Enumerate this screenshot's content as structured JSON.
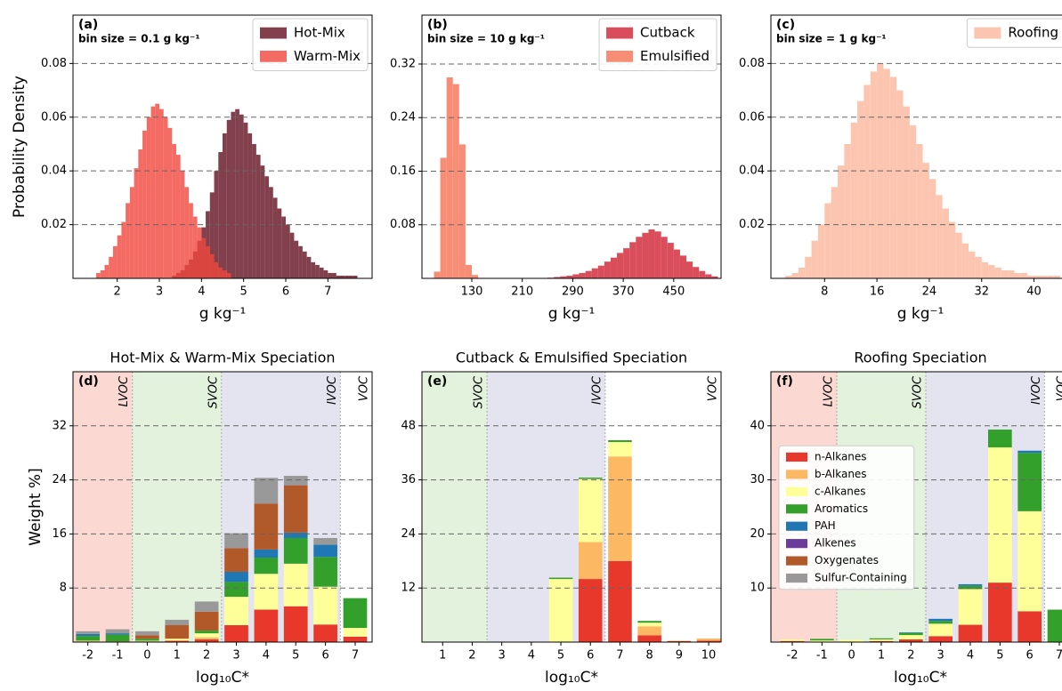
{
  "chart_data": [
    {
      "type": "histogram",
      "panel_label": "(a)",
      "annotation": "bin size = 0.1 g kg⁻¹",
      "xlabel": "g kg⁻¹",
      "ylabel": "Probability Density",
      "legend": "upper right",
      "grid": true,
      "xlim": [
        0.95,
        8.05
      ],
      "ylim": [
        0,
        0.098
      ],
      "xticks": [
        2,
        3,
        4,
        5,
        6,
        7
      ],
      "yticks": [
        0.02,
        0.04,
        0.06,
        0.08
      ],
      "series": [
        {
          "name": "Hot-Mix",
          "color": "#6b1f2c",
          "alpha": 0.85,
          "bins": [
            3.3,
            3.4,
            3.5,
            3.6,
            3.7,
            3.8,
            3.9,
            4.0,
            4.1,
            4.2,
            4.3,
            4.4,
            4.5,
            4.6,
            4.7,
            4.8,
            4.9,
            5.0,
            5.1,
            5.2,
            5.3,
            5.4,
            5.5,
            5.6,
            5.7,
            5.8,
            5.9,
            6.0,
            6.1,
            6.2,
            6.3,
            6.4,
            6.5,
            6.6,
            6.7,
            6.8,
            6.9,
            7.0,
            7.1,
            7.2,
            7.3,
            7.4,
            7.5,
            7.6,
            7.7
          ],
          "values": [
            0.001,
            0.002,
            0.003,
            0.005,
            0.007,
            0.01,
            0.014,
            0.019,
            0.025,
            0.032,
            0.04,
            0.047,
            0.054,
            0.059,
            0.062,
            0.063,
            0.061,
            0.058,
            0.054,
            0.05,
            0.046,
            0.042,
            0.038,
            0.034,
            0.03,
            0.026,
            0.023,
            0.02,
            0.017,
            0.014,
            0.012,
            0.01,
            0.008,
            0.006,
            0.005,
            0.004,
            0.003,
            0.002,
            0.002,
            0.001,
            0.001,
            0.001,
            0.001,
            0.001
          ]
        },
        {
          "name": "Warm-Mix",
          "color": "#f0463c",
          "alpha": 0.8,
          "bins": [
            1.5,
            1.6,
            1.7,
            1.8,
            1.9,
            2.0,
            2.1,
            2.2,
            2.3,
            2.4,
            2.5,
            2.6,
            2.7,
            2.8,
            2.9,
            3.0,
            3.1,
            3.2,
            3.3,
            3.4,
            3.5,
            3.6,
            3.7,
            3.8,
            3.9,
            4.0,
            4.1,
            4.2,
            4.3,
            4.4,
            4.5,
            4.6,
            4.7
          ],
          "values": [
            0.002,
            0.003,
            0.005,
            0.008,
            0.012,
            0.016,
            0.021,
            0.028,
            0.034,
            0.041,
            0.048,
            0.055,
            0.06,
            0.064,
            0.065,
            0.063,
            0.06,
            0.056,
            0.05,
            0.046,
            0.04,
            0.034,
            0.028,
            0.023,
            0.019,
            0.015,
            0.012,
            0.009,
            0.006,
            0.004,
            0.003,
            0.002
          ]
        }
      ]
    },
    {
      "type": "histogram",
      "panel_label": "(b)",
      "annotation": "bin size = 10 g kg⁻¹",
      "xlabel": "g kg⁻¹",
      "legend": "upper right",
      "grid": true,
      "xlim": [
        51,
        525
      ],
      "ylim": [
        0,
        0.393
      ],
      "xticks": [
        130,
        210,
        290,
        370,
        450
      ],
      "yticks": [
        0.08,
        0.16,
        0.24,
        0.32
      ],
      "series": [
        {
          "name": "Cutback",
          "color": "#d63a48",
          "alpha": 0.9,
          "bins": [
            250,
            260,
            270,
            280,
            290,
            300,
            310,
            320,
            330,
            340,
            350,
            360,
            370,
            380,
            390,
            400,
            410,
            420,
            430,
            440,
            450,
            460,
            470,
            480,
            490,
            500,
            510,
            520
          ],
          "values": [
            0.001,
            0.002,
            0.003,
            0.004,
            0.006,
            0.008,
            0.011,
            0.015,
            0.019,
            0.025,
            0.031,
            0.038,
            0.045,
            0.054,
            0.062,
            0.068,
            0.073,
            0.07,
            0.062,
            0.053,
            0.043,
            0.034,
            0.025,
            0.017,
            0.011,
            0.006,
            0.003
          ]
        },
        {
          "name": "Emulsified",
          "color": "#f8876f",
          "alpha": 0.95,
          "bins": [
            70,
            80,
            90,
            100,
            110,
            120,
            130,
            140
          ],
          "values": [
            0.01,
            0.18,
            0.3,
            0.29,
            0.2,
            0.02,
            0.005
          ]
        }
      ]
    },
    {
      "type": "histogram",
      "panel_label": "(c)",
      "annotation": "bin size = 1 g kg⁻¹",
      "xlabel": "g kg⁻¹",
      "legend": "upper right",
      "grid": true,
      "xlim": [
        -0.2,
        45.5
      ],
      "ylim": [
        0,
        0.098
      ],
      "xticks": [
        8,
        16,
        24,
        32,
        40
      ],
      "yticks": [
        0.02,
        0.04,
        0.06,
        0.08
      ],
      "series": [
        {
          "name": "Roofing",
          "color": "#fcc5b0",
          "alpha": 1,
          "bins": [
            2,
            3,
            4,
            5,
            6,
            7,
            8,
            9,
            10,
            11,
            12,
            13,
            14,
            15,
            16,
            17,
            18,
            19,
            20,
            21,
            22,
            23,
            24,
            25,
            26,
            27,
            28,
            29,
            30,
            31,
            32,
            33,
            34,
            35,
            36,
            37,
            38,
            39,
            40,
            41,
            42,
            43,
            44
          ],
          "values": [
            0.001,
            0.002,
            0.004,
            0.008,
            0.014,
            0.02,
            0.028,
            0.034,
            0.042,
            0.05,
            0.058,
            0.066,
            0.072,
            0.077,
            0.08,
            0.078,
            0.075,
            0.07,
            0.064,
            0.057,
            0.05,
            0.043,
            0.037,
            0.031,
            0.026,
            0.021,
            0.017,
            0.013,
            0.01,
            0.008,
            0.006,
            0.005,
            0.004,
            0.003,
            0.003,
            0.002,
            0.002,
            0.001,
            0.001,
            0.001,
            0.001,
            0.001
          ]
        }
      ]
    },
    {
      "type": "stacked_bar",
      "title": "Hot-Mix & Warm-Mix Speciation",
      "panel_label": "(d)",
      "xlabel": "log₁₀C*",
      "ylabel": "Weight %]",
      "grid": true,
      "x": [
        -2,
        -1,
        0,
        1,
        2,
        3,
        4,
        5,
        6,
        7
      ],
      "xlim": [
        -2.5,
        7.57
      ],
      "ylim": [
        0,
        40
      ],
      "yticks": [
        8,
        16,
        24,
        32
      ],
      "regions": [
        {
          "label": "LVOC",
          "span": [
            -2.5,
            -0.5
          ],
          "color": "#fbd9d2"
        },
        {
          "label": "SVOC",
          "span": [
            -0.5,
            2.5
          ],
          "color": "#e2f2dc"
        },
        {
          "label": "IVOC",
          "span": [
            2.5,
            6.5
          ],
          "color": "#e4e4f0"
        },
        {
          "label": "VOC",
          "span": [
            6.5,
            7.57
          ],
          "color": "#ffffff"
        }
      ],
      "series": [
        {
          "name": "n-Alkanes",
          "color": "#e8382b",
          "values": [
            0.1,
            0.1,
            0.1,
            0.2,
            0.4,
            2.5,
            4.8,
            5.3,
            2.6,
            0.8
          ]
        },
        {
          "name": "b-Alkanes",
          "color": "#fdb863",
          "values": [
            0,
            0,
            0,
            0,
            0.3,
            0,
            0,
            0,
            0,
            0
          ]
        },
        {
          "name": "c-Alkanes",
          "color": "#ffff99",
          "values": [
            0.1,
            0,
            0.1,
            0.3,
            0.6,
            4.2,
            5.3,
            6.3,
            5.6,
            1.3
          ]
        },
        {
          "name": "Aromatics",
          "color": "#33a02c",
          "values": [
            0.7,
            1.0,
            0.3,
            0,
            0.4,
            2.2,
            2.4,
            3.8,
            4.4,
            4.4
          ]
        },
        {
          "name": "PAH",
          "color": "#1f78b4",
          "values": [
            0.3,
            0.2,
            0,
            0,
            0,
            1.5,
            1.2,
            0.8,
            1.8,
            0
          ]
        },
        {
          "name": "Alkenes",
          "color": "#6a3d9a",
          "values": [
            0,
            0,
            0,
            0,
            0,
            0,
            0,
            0,
            0,
            0
          ]
        },
        {
          "name": "Oxygenates",
          "color": "#b15928",
          "values": [
            0,
            0,
            0.5,
            2.0,
            2.8,
            3.5,
            6.8,
            7.0,
            0,
            0
          ]
        },
        {
          "name": "Sulfur-Containing",
          "color": "#999999",
          "values": [
            0.4,
            0.6,
            0.6,
            0.8,
            1.5,
            2.2,
            3.8,
            1.4,
            1.0,
            0
          ]
        }
      ]
    },
    {
      "type": "stacked_bar",
      "title": "Cutback & Emulsified Speciation",
      "panel_label": "(e)",
      "xlabel": "log₁₀C*",
      "grid": true,
      "x": [
        1,
        2,
        3,
        4,
        5,
        6,
        7,
        8,
        9,
        10
      ],
      "xlim": [
        0.3,
        10.42
      ],
      "ylim": [
        0,
        60
      ],
      "yticks": [
        12,
        24,
        36,
        48
      ],
      "regions": [
        {
          "label": "SVOC",
          "span": [
            0.3,
            2.5
          ],
          "color": "#e2f2dc"
        },
        {
          "label": "IVOC",
          "span": [
            2.5,
            6.5
          ],
          "color": "#e4e4f0"
        },
        {
          "label": "VOC",
          "span": [
            6.5,
            10.42
          ],
          "color": "#ffffff"
        }
      ],
      "series": [
        {
          "name": "n-Alkanes",
          "color": "#e8382b",
          "values": [
            0,
            0,
            0,
            0,
            0,
            14,
            18,
            1.5,
            0.2,
            0.3
          ]
        },
        {
          "name": "b-Alkanes",
          "color": "#fdb863",
          "values": [
            0,
            0,
            0,
            0,
            0,
            8.2,
            23.2,
            2,
            0.1,
            0.5
          ]
        },
        {
          "name": "c-Alkanes",
          "color": "#ffff99",
          "values": [
            0,
            0,
            0,
            0,
            14,
            14,
            3.2,
            0.8,
            0,
            0
          ]
        },
        {
          "name": "Aromatics",
          "color": "#33a02c",
          "values": [
            0,
            0,
            0,
            0,
            0.3,
            0.3,
            0.4,
            0.4,
            0,
            0
          ]
        },
        {
          "name": "PAH",
          "color": "#1f78b4",
          "values": [
            0,
            0,
            0,
            0,
            0,
            0,
            0,
            0,
            0,
            0
          ]
        },
        {
          "name": "Alkenes",
          "color": "#6a3d9a",
          "values": [
            0,
            0,
            0,
            0,
            0,
            0,
            0,
            0,
            0,
            0
          ]
        },
        {
          "name": "Oxygenates",
          "color": "#b15928",
          "values": [
            0,
            0,
            0,
            0,
            0,
            0,
            0,
            0,
            0,
            0
          ]
        },
        {
          "name": "Sulfur-Containing",
          "color": "#999999",
          "values": [
            0,
            0,
            0,
            0,
            0,
            0,
            0,
            0,
            0,
            0
          ]
        }
      ]
    },
    {
      "type": "stacked_bar",
      "title": "Roofing Speciation",
      "panel_label": "(f)",
      "xlabel": "log₁₀C*",
      "grid": true,
      "legend": "center left",
      "x": [
        -2,
        -1,
        0,
        1,
        2,
        3,
        4,
        5,
        6,
        7
      ],
      "xlim": [
        -2.72,
        7.36
      ],
      "ylim": [
        0,
        50
      ],
      "yticks": [
        10,
        20,
        30,
        40
      ],
      "regions": [
        {
          "label": "LVOC",
          "span": [
            -2.72,
            -0.5
          ],
          "color": "#fbd9d2"
        },
        {
          "label": "SVOC",
          "span": [
            -0.5,
            2.5
          ],
          "color": "#e2f2dc"
        },
        {
          "label": "IVOC",
          "span": [
            2.5,
            6.5
          ],
          "color": "#e4e4f0"
        },
        {
          "label": "VOC",
          "span": [
            6.5,
            7.36
          ],
          "color": "#ffffff"
        }
      ],
      "series": [
        {
          "name": "n-Alkanes",
          "color": "#e8382b",
          "values": [
            0.2,
            0,
            0,
            0.2,
            0.5,
            1.1,
            3.2,
            11,
            5.7,
            0
          ]
        },
        {
          "name": "b-Alkanes",
          "color": "#fdb863",
          "values": [
            0,
            0,
            0,
            0,
            0,
            0,
            0,
            0,
            0,
            0
          ]
        },
        {
          "name": "c-Alkanes",
          "color": "#ffff99",
          "values": [
            0.3,
            0.3,
            0.4,
            0.3,
            0.8,
            2.3,
            6.6,
            25,
            18.5,
            0
          ]
        },
        {
          "name": "Aromatics",
          "color": "#33a02c",
          "values": [
            0,
            0.3,
            0,
            0.2,
            0.4,
            0.5,
            0.6,
            3.3,
            10.8,
            6
          ]
        },
        {
          "name": "PAH",
          "color": "#1f78b4",
          "values": [
            0,
            0,
            0,
            0,
            0.1,
            0.4,
            0.3,
            0,
            0.4,
            0
          ]
        },
        {
          "name": "Alkenes",
          "color": "#6a3d9a",
          "values": [
            0,
            0,
            0,
            0,
            0,
            0,
            0,
            0,
            0,
            0
          ]
        },
        {
          "name": "Oxygenates",
          "color": "#b15928",
          "values": [
            0,
            0,
            0,
            0,
            0,
            0,
            0,
            0,
            0,
            0
          ]
        },
        {
          "name": "Sulfur-Containing",
          "color": "#999999",
          "values": [
            0,
            0,
            0,
            0,
            0,
            0,
            0,
            0,
            0,
            0
          ]
        }
      ]
    }
  ]
}
